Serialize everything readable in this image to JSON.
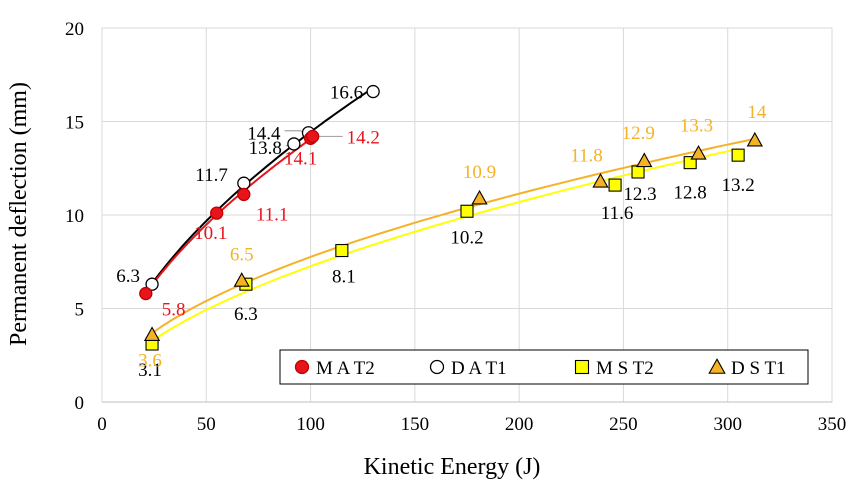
{
  "chart_data": {
    "type": "scatter",
    "title": "",
    "xlabel": "Kinetic Energy (J)",
    "ylabel": "Permanent deflection (mm)",
    "xlim": [
      0,
      350
    ],
    "ylim": [
      0,
      20
    ],
    "xticks": [
      0,
      50,
      100,
      150,
      200,
      250,
      300,
      350
    ],
    "yticks": [
      0,
      5,
      10,
      15,
      20
    ],
    "grid": true,
    "legend": "bottom-right",
    "series": [
      {
        "name": "M A T2",
        "marker": "circle",
        "fill": "#e8141c",
        "stroke": "#c00000",
        "curve_color": "#e8141c",
        "label_color": "#e8141c",
        "x": [
          21,
          55,
          68,
          100,
          101
        ],
        "y": [
          5.8,
          10.1,
          11.1,
          14.1,
          14.2
        ],
        "labels": [
          "5.8",
          "10.1",
          "11.1",
          "14.1",
          "14.2"
        ]
      },
      {
        "name": "D A T1",
        "marker": "circle-open",
        "fill": "#ffffff",
        "stroke": "#000000",
        "curve_color": "#000000",
        "label_color": "#000000",
        "x": [
          24,
          68,
          92,
          99,
          130
        ],
        "y": [
          6.3,
          11.7,
          13.8,
          14.4,
          16.6
        ],
        "labels": [
          "6.3",
          "11.7",
          "13.8",
          "14.4",
          "16.6"
        ]
      },
      {
        "name": "M S T2",
        "marker": "square",
        "fill": "#ffff00",
        "stroke": "#000000",
        "curve_color": "#ffff00",
        "label_color": "#000000",
        "x": [
          24,
          69,
          115,
          175,
          246,
          257,
          282,
          305
        ],
        "y": [
          3.1,
          6.3,
          8.1,
          10.2,
          11.6,
          12.3,
          12.8,
          13.2
        ],
        "labels": [
          "3.1",
          "6.3",
          "8.1",
          "10.2",
          "11.6",
          "12.3",
          "12.8",
          "13.2"
        ]
      },
      {
        "name": "D S T1",
        "marker": "triangle",
        "fill": "#f5b226",
        "stroke": "#000000",
        "curve_color": "#f5b226",
        "label_color": "#f5b226",
        "x": [
          24,
          67,
          181,
          239,
          260,
          286,
          313
        ],
        "y": [
          3.6,
          6.5,
          10.9,
          11.8,
          12.9,
          13.3,
          14.0
        ],
        "labels": [
          "3.6",
          "6.5",
          "10.9",
          "11.8",
          "12.9",
          "13.3",
          "14"
        ]
      }
    ]
  }
}
